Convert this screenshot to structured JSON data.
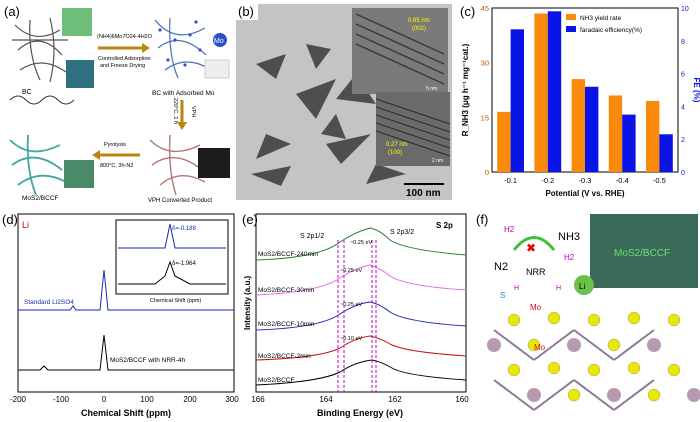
{
  "panel_a": {
    "label": "(a)",
    "reagent": "(NH4)6Mo7O24·4H2O",
    "step1": "Controlled Adsorption",
    "step1b": "and Freeze Drying",
    "bc_label": "BC",
    "bc_ads_label": "BC with Adsorbed Mo",
    "mo_badge": "Mo",
    "vph_label": "VPH",
    "vph_cond": "220°C, 1 h",
    "pyro": "Pyrolysis",
    "pyro_cond": "800°C, 3h-N2",
    "vph_product": "VPH Converted Product",
    "final_label": "MoS2/BCCF"
  },
  "panel_b": {
    "label": "(b)",
    "scale": "100 nm",
    "d1": "0.65 nm",
    "d1_plane": "(002)",
    "d2": "0.27 nm",
    "d2_plane": "(100)",
    "inset_scale1": "5 nm",
    "inset_scale2": "2 nm"
  },
  "panel_c": {
    "label": "(c)",
    "chart_data": {
      "type": "bar",
      "categories": [
        "-0.1",
        "-0.2",
        "-0.3",
        "-0.4",
        "-0.5"
      ],
      "series": [
        {
          "name": "NH3 yield rate",
          "values": [
            16.5,
            43.5,
            25.5,
            21,
            19.5
          ],
          "color": "#f98a0b"
        },
        {
          "name": "faradaic efficiency(%)",
          "values": [
            8.7,
            9.8,
            5.2,
            3.5,
            2.3
          ],
          "color": "#0a13e8"
        }
      ],
      "xlabel": "Potential (V vs. RHE)",
      "ylabel": "R_NH3 (μg h⁻¹ mg⁻¹cat.)",
      "y2label": "FE (%)",
      "ylim": [
        0,
        45
      ],
      "y2lim": [
        0,
        10
      ],
      "yticks": [
        "0",
        "15",
        "30",
        "45"
      ],
      "y2ticks": [
        "0",
        "2",
        "4",
        "6",
        "8",
        "10"
      ]
    }
  },
  "panel_d": {
    "label": "(d)",
    "nucleus": "Li",
    "chart_data": {
      "type": "line",
      "xlabel": "Chemical Shift (ppm)",
      "xlim": [
        -200,
        300
      ],
      "xticks": [
        "-200",
        "-100",
        "0",
        "100",
        "200",
        "300"
      ],
      "series_labels": [
        "Standard Li2SO4",
        "MoS2/BCCF with NRR-4h"
      ],
      "inset": {
        "xlabel": "Chemical Shift (ppm)",
        "xticks": [
          "-20",
          "-10",
          "0",
          "10",
          "20",
          "30"
        ],
        "peak1": "δ=-0.188",
        "peak2": "δ=-1.964"
      }
    }
  },
  "panel_e": {
    "label": "(e)",
    "tag": "S 2p",
    "s2p12": "S 2p1/2",
    "s2p32": "S 2p3/2",
    "shifts": [
      "~0.25 eV",
      "~0.25 eV",
      "~0.25 eV",
      "~0.10 eV"
    ],
    "chart_data": {
      "type": "line",
      "xlabel": "Binding Energy (eV)",
      "ylabel": "Intensity (a.u.)",
      "xticks": [
        "166",
        "164",
        "162",
        "160"
      ],
      "series": [
        {
          "name": "MoS2/BCCF-240min",
          "color": "#2e7a2e"
        },
        {
          "name": "MoS2/BCCF-30min",
          "color": "#e06ae0"
        },
        {
          "name": "MoS2/BCCF-10min",
          "color": "#1a2ab0"
        },
        {
          "name": "MoS2/BCCF-2min",
          "color": "#c81818"
        },
        {
          "name": "MoS2/BCCF",
          "color": "#000000"
        }
      ]
    }
  },
  "panel_f": {
    "label": "(f)",
    "n2": "N2",
    "nh3": "NH3",
    "h2a": "H2",
    "h2b": "H2",
    "nrr": "NRR",
    "li": "Li",
    "s": "S",
    "mo1": "Mo",
    "mo2": "Mo",
    "h1": "H",
    "h2": "H",
    "inset": "MoS2/BCCF"
  }
}
